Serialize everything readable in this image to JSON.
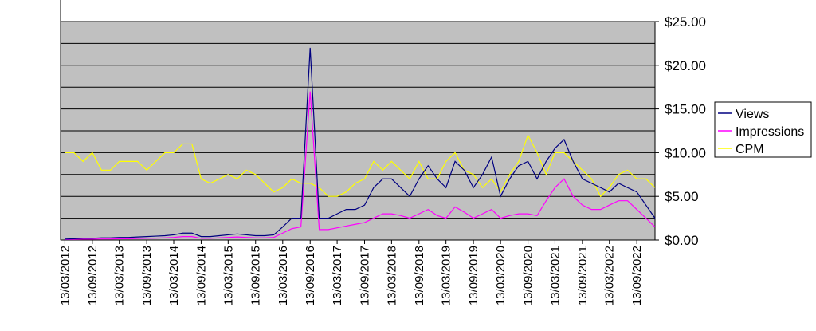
{
  "chart_data": {
    "type": "line",
    "x": [
      "13/03/2012",
      "13/05/2012",
      "13/07/2012",
      "13/09/2012",
      "13/11/2012",
      "13/01/2013",
      "13/03/2013",
      "13/05/2013",
      "13/07/2013",
      "13/09/2013",
      "13/11/2013",
      "13/01/2014",
      "13/03/2014",
      "13/05/2014",
      "13/07/2014",
      "13/09/2014",
      "13/11/2014",
      "13/01/2015",
      "13/03/2015",
      "13/05/2015",
      "13/07/2015",
      "13/09/2015",
      "13/11/2015",
      "13/01/2016",
      "13/03/2016",
      "13/05/2016",
      "13/07/2016",
      "13/09/2016",
      "13/11/2016",
      "13/01/2017",
      "13/03/2017",
      "13/05/2017",
      "13/07/2017",
      "13/09/2017",
      "13/11/2017",
      "13/01/2018",
      "13/03/2018",
      "13/05/2018",
      "13/07/2018",
      "13/09/2018",
      "13/11/2018",
      "13/01/2019",
      "13/03/2019",
      "13/05/2019",
      "13/07/2019",
      "13/09/2019",
      "13/11/2019",
      "13/01/2020",
      "13/03/2020",
      "13/05/2020",
      "13/07/2020",
      "13/09/2020",
      "13/11/2020",
      "13/01/2021",
      "13/03/2021",
      "13/05/2021",
      "13/07/2021",
      "13/09/2021",
      "13/11/2021",
      "13/01/2022",
      "13/03/2022",
      "13/05/2022",
      "13/07/2022",
      "13/09/2022",
      "13/11/2022",
      "13/01/2023"
    ],
    "series": [
      {
        "name": "Views",
        "color": "#000080",
        "values": [
          0.1,
          0.15,
          0.2,
          0.2,
          0.25,
          0.25,
          0.3,
          0.3,
          0.35,
          0.4,
          0.45,
          0.5,
          0.6,
          0.8,
          0.8,
          0.4,
          0.4,
          0.5,
          0.6,
          0.7,
          0.6,
          0.5,
          0.5,
          0.6,
          1.5,
          2.5,
          2.5,
          22,
          2.5,
          2.5,
          3,
          3.5,
          3.5,
          4,
          6,
          7,
          7,
          6,
          5,
          7,
          8.5,
          7,
          6,
          9,
          8,
          6,
          7.5,
          9.5,
          5,
          7,
          8.5,
          9,
          7,
          9,
          10.5,
          11.5,
          9,
          7,
          6.5,
          6,
          5.5,
          6.5,
          6,
          5.5,
          4,
          2.5
        ]
      },
      {
        "name": "Impressions",
        "color": "#ff00ff",
        "values": [
          0.05,
          0.08,
          0.1,
          0.1,
          0.12,
          0.12,
          0.15,
          0.15,
          0.18,
          0.2,
          0.22,
          0.25,
          0.3,
          0.4,
          0.4,
          0.2,
          0.2,
          0.25,
          0.3,
          0.35,
          0.3,
          0.25,
          0.25,
          0.3,
          0.8,
          1.3,
          1.5,
          17,
          1.2,
          1.2,
          1.4,
          1.6,
          1.8,
          2,
          2.5,
          3,
          3,
          2.8,
          2.5,
          3,
          3.5,
          2.8,
          2.5,
          3.8,
          3.2,
          2.5,
          3,
          3.5,
          2.5,
          2.8,
          3,
          3,
          2.8,
          4.5,
          6,
          7,
          5,
          4,
          3.5,
          3.5,
          4,
          4.5,
          4.5,
          3.5,
          2.5,
          1.5
        ]
      },
      {
        "name": "CPM",
        "color": "#ffff00",
        "values": [
          10,
          10,
          9,
          10,
          8,
          8,
          9,
          9,
          9,
          8,
          9,
          10,
          10,
          11,
          11,
          7,
          6.5,
          7,
          7.5,
          7,
          8,
          7.5,
          6.5,
          5.5,
          6,
          7,
          6.5,
          6.5,
          6,
          5,
          5,
          5.5,
          6.5,
          7,
          9,
          8,
          9,
          8,
          7,
          9,
          7,
          7,
          9,
          10,
          8,
          7.5,
          6,
          7,
          5.5,
          7.5,
          9,
          12,
          10,
          7.5,
          10,
          10,
          9,
          8,
          7,
          5,
          6,
          7.5,
          8,
          7,
          7,
          6
        ]
      }
    ],
    "xlim": [
      "13/02/2012",
      "13/01/2023"
    ],
    "xticks": [
      "13/03/2012",
      "13/09/2012",
      "13/03/2013",
      "13/09/2013",
      "13/03/2014",
      "13/09/2014",
      "13/03/2015",
      "13/09/2015",
      "13/03/2016",
      "13/09/2016",
      "13/03/2017",
      "13/09/2017",
      "13/03/2018",
      "13/09/2018",
      "13/03/2019",
      "13/09/2019",
      "13/03/2020",
      "13/09/2020",
      "13/03/2021",
      "13/09/2021",
      "13/03/2022",
      "13/09/2022"
    ],
    "ylim": [
      0,
      25
    ],
    "yticks": [
      {
        "value": 0,
        "label": "$0.00"
      },
      {
        "value": 5,
        "label": "$5.00"
      },
      {
        "value": 10,
        "label": "$10.00"
      },
      {
        "value": 15,
        "label": "$15.00"
      },
      {
        "value": 20,
        "label": "$20.00"
      },
      {
        "value": 25,
        "label": "$25.00"
      }
    ],
    "ygrid": [
      2.5,
      5,
      7.5,
      10,
      12.5,
      15,
      17.5,
      20,
      22.5,
      25
    ],
    "legend": "right"
  }
}
